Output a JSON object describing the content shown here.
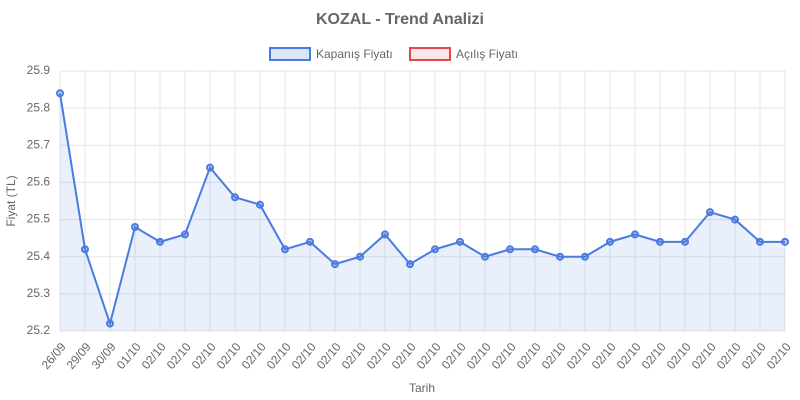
{
  "chart_data": {
    "type": "line",
    "title": "KOZAL - Trend Analizi",
    "x_label": "Tarih",
    "y_label": "Fiyat (TL)",
    "categories": [
      "26/09",
      "29/09",
      "30/09",
      "01/10",
      "02/10",
      "02/10",
      "02/10",
      "02/10",
      "02/10",
      "02/10",
      "02/10",
      "02/10",
      "02/10",
      "02/10",
      "02/10",
      "02/10",
      "02/10",
      "02/10",
      "02/10",
      "02/10",
      "02/10",
      "02/10",
      "02/10",
      "02/10",
      "02/10",
      "02/10",
      "02/10",
      "02/10",
      "02/10",
      "02/10"
    ],
    "series": [
      {
        "name": "Kapanış Fiyatı",
        "color": "#4a7be0",
        "fill": true,
        "values": [
          25.84,
          25.42,
          25.22,
          25.48,
          25.44,
          25.46,
          25.64,
          25.56,
          25.54,
          25.42,
          25.44,
          25.38,
          25.4,
          25.46,
          25.38,
          25.42,
          25.44,
          25.4,
          25.42,
          25.42,
          25.4,
          25.4,
          25.44,
          25.46,
          25.44,
          25.44,
          25.52,
          25.5,
          25.44,
          25.44
        ]
      },
      {
        "name": "Açılış Fiyatı",
        "color": "#e04a4a",
        "fill": false,
        "values": [
          null,
          null,
          null,
          null,
          null,
          null,
          null,
          null,
          null,
          null,
          null,
          null,
          null,
          null,
          null,
          null,
          null,
          null,
          null,
          null,
          null,
          null,
          null,
          null,
          null,
          null,
          null,
          null,
          null,
          null
        ]
      }
    ],
    "ylim": [
      25.2,
      25.9
    ],
    "yticks": [
      25.2,
      25.3,
      25.4,
      25.5,
      25.6,
      25.7,
      25.8,
      25.9
    ],
    "grid": true,
    "legend": "top"
  }
}
